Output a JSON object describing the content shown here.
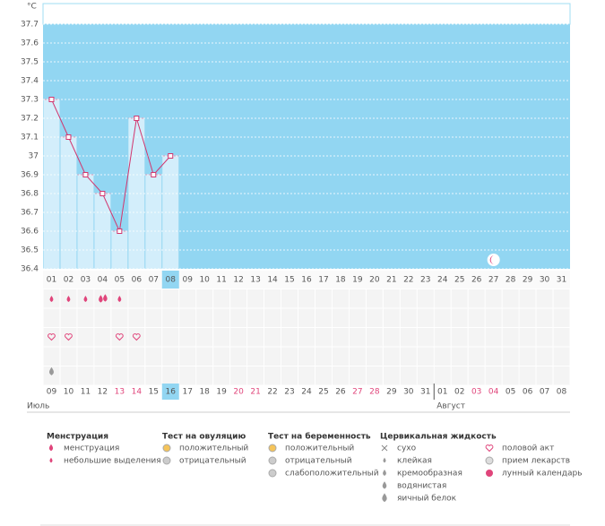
{
  "chart_data": {
    "type": "line",
    "y_unit": "°C",
    "categories": [
      "01",
      "02",
      "03",
      "04",
      "05",
      "06",
      "07",
      "08",
      "09",
      "10",
      "11",
      "12",
      "13",
      "14",
      "15",
      "16",
      "17",
      "18",
      "19",
      "20",
      "21",
      "22",
      "23",
      "24",
      "25",
      "26",
      "27",
      "28",
      "29",
      "30",
      "31"
    ],
    "values": [
      37.3,
      37.1,
      36.9,
      36.8,
      36.6,
      37.2,
      36.9,
      37,
      null,
      null,
      null,
      null,
      null,
      null,
      null,
      null,
      null,
      null,
      null,
      null,
      null,
      null,
      null,
      null,
      null,
      null,
      null,
      null,
      null,
      null,
      null
    ],
    "ylim": [
      36.4,
      37.7
    ],
    "yticks": [
      36.4,
      36.5,
      36.6,
      36.7,
      36.8,
      36.9,
      37,
      37.1,
      37.2,
      37.3,
      37.4,
      37.5,
      37.6,
      37.7
    ],
    "grid": true,
    "line_color": "#d2366e",
    "bar_color": "#d3eefb",
    "background": "#92d6f2",
    "highlight": "08",
    "dates": [
      "09",
      "10",
      "11",
      "12",
      "13",
      "14",
      "15",
      "16",
      "17",
      "18",
      "19",
      "20",
      "21",
      "22",
      "23",
      "24",
      "25",
      "26",
      "27",
      "28",
      "29",
      "30",
      "31",
      "01",
      "02",
      "03",
      "04",
      "05",
      "06",
      "07",
      "08"
    ],
    "weekend": [
      false,
      false,
      false,
      false,
      true,
      true,
      false,
      false,
      false,
      false,
      false,
      true,
      true,
      false,
      false,
      false,
      false,
      false,
      true,
      true,
      false,
      false,
      false,
      false,
      false,
      true,
      true,
      false,
      false,
      false,
      false
    ],
    "months": [
      "Июль",
      "Август"
    ]
  },
  "legend": [
    {
      "title": "Менструация",
      "items": [
        "менструация",
        "небольшие выделения"
      ]
    },
    {
      "title": "Тест на овуляцию",
      "items": [
        "положительный",
        "отрицательный"
      ]
    },
    {
      "title": "Тест на беременность",
      "items": [
        "положительный",
        "отрицательный",
        "слабоположительный"
      ]
    },
    {
      "title": "Цервикальная жидкость",
      "items": [
        "сухо",
        "клейкая",
        "кремообразная",
        "водянистая",
        "яичный белок"
      ]
    },
    {
      "items": [
        "половой акт",
        "прием лекарств",
        "лунный календарь"
      ]
    }
  ]
}
